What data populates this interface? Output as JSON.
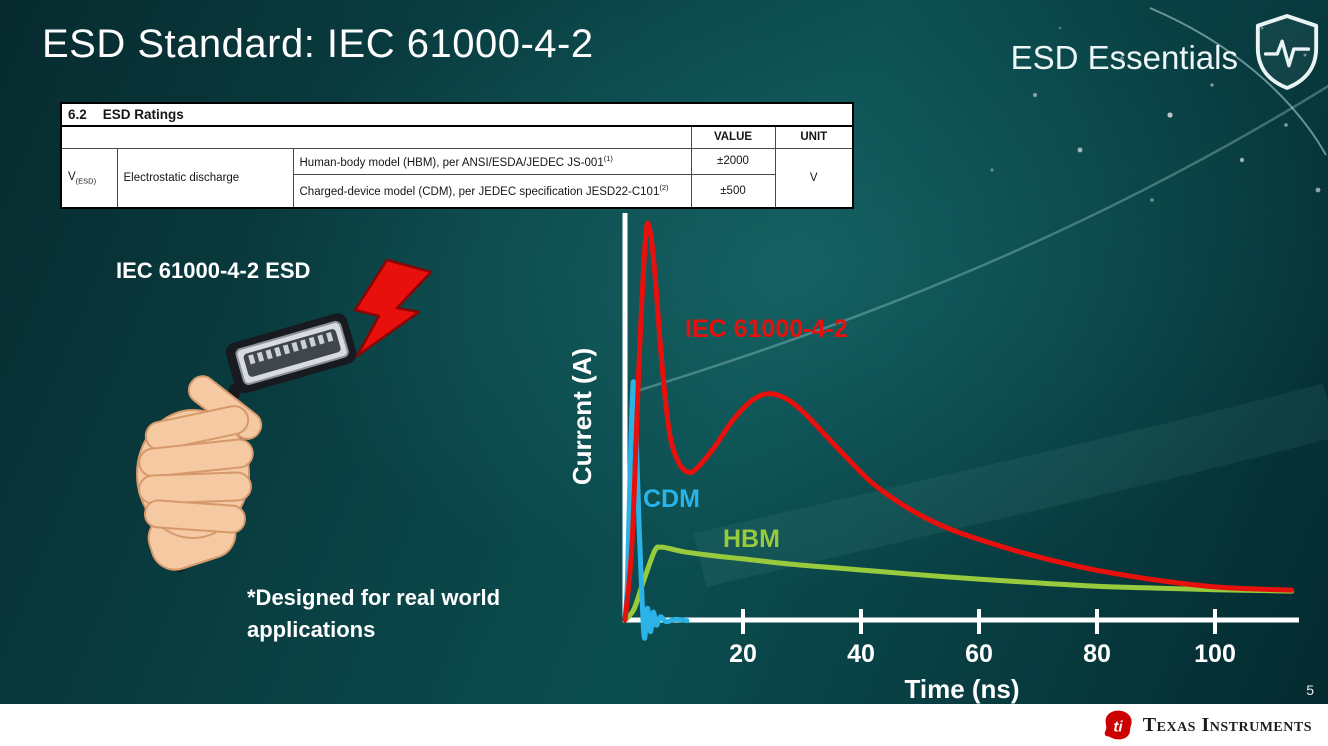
{
  "slide": {
    "title": "ESD Standard: IEC 61000-4-2",
    "brand": "ESD Essentials",
    "page_number": "5",
    "footer_brand": "Texas Instruments"
  },
  "ratings_table": {
    "section_number": "6.2",
    "section_title": "ESD Ratings",
    "headers": {
      "value": "VALUE",
      "unit": "UNIT"
    },
    "param_symbol_main": "V",
    "param_symbol_sub": "(ESD)",
    "param_name": "Electrostatic discharge",
    "rows": [
      {
        "desc": "Human-body model (HBM), per ANSI/ESDA/JEDEC JS-001",
        "sup": "(1)",
        "value": "±2000"
      },
      {
        "desc": "Charged-device model (CDM), per JEDEC specification JESD22-C101",
        "sup": "(2)",
        "value": "±500"
      }
    ],
    "unit": "V"
  },
  "left_panel": {
    "connector_label": "IEC 61000-4-2 ESD",
    "note_line1": "*Designed for real world",
    "note_line2": "applications"
  },
  "chart_data": {
    "type": "line",
    "title": "",
    "xlabel": "Time (ns)",
    "ylabel": "Current (A)",
    "x_ticks": [
      20,
      40,
      60,
      80,
      100
    ],
    "xlim": [
      0,
      113
    ],
    "ylim": [
      -2,
      31
    ],
    "y_axis_numeric_labels": false,
    "grid": false,
    "legend_position": "inline-labels",
    "series": [
      {
        "name": "IEC 61000-4-2",
        "color": "#e8100c",
        "points": [
          [
            0,
            0
          ],
          [
            1.2,
            6
          ],
          [
            2.4,
            20
          ],
          [
            3.5,
            29.5
          ],
          [
            4.2,
            30
          ],
          [
            5,
            27
          ],
          [
            6.2,
            20
          ],
          [
            7.5,
            14.5
          ],
          [
            9,
            12.2
          ],
          [
            10.5,
            11.4
          ],
          [
            12,
            11.6
          ],
          [
            15,
            13.2
          ],
          [
            18,
            15.2
          ],
          [
            21,
            16.7
          ],
          [
            24,
            17.4
          ],
          [
            27,
            17.1
          ],
          [
            30,
            16.1
          ],
          [
            34,
            14.2
          ],
          [
            38,
            12.3
          ],
          [
            42,
            10.5
          ],
          [
            48,
            8.6
          ],
          [
            54,
            7.2
          ],
          [
            60,
            6.2
          ],
          [
            68,
            5.1
          ],
          [
            76,
            4.2
          ],
          [
            84,
            3.5
          ],
          [
            92,
            2.95
          ],
          [
            100,
            2.55
          ],
          [
            106,
            2.4
          ],
          [
            113,
            2.3
          ]
        ]
      },
      {
        "name": "CDM",
        "color": "#2bb3e8",
        "points": [
          [
            0,
            0
          ],
          [
            0.4,
            3
          ],
          [
            0.9,
            12
          ],
          [
            1.4,
            18.3
          ],
          [
            1.9,
            14
          ],
          [
            2.4,
            7
          ],
          [
            2.9,
            1.5
          ],
          [
            3.3,
            -1.4
          ],
          [
            3.8,
            0.9
          ],
          [
            4.3,
            -0.9
          ],
          [
            4.8,
            0.6
          ],
          [
            5.3,
            -0.4
          ],
          [
            6,
            0.25
          ],
          [
            7,
            -0.12
          ],
          [
            8.5,
            0.05
          ],
          [
            10.5,
            -0.05
          ]
        ]
      },
      {
        "name": "HBM",
        "color": "#97ca3d",
        "points": [
          [
            0,
            0
          ],
          [
            1.5,
            0.8
          ],
          [
            3,
            2.8
          ],
          [
            5,
            5.3
          ],
          [
            6,
            5.6
          ],
          [
            7.5,
            5.5
          ],
          [
            10,
            5.25
          ],
          [
            14,
            5.0
          ],
          [
            20,
            4.7
          ],
          [
            28,
            4.3
          ],
          [
            36,
            4.0
          ],
          [
            44,
            3.7
          ],
          [
            52,
            3.4
          ],
          [
            60,
            3.15
          ],
          [
            70,
            2.85
          ],
          [
            80,
            2.6
          ],
          [
            90,
            2.45
          ],
          [
            100,
            2.33
          ],
          [
            106,
            2.28
          ],
          [
            113,
            2.22
          ]
        ]
      }
    ]
  },
  "colors": {
    "iec_red": "#e8100c",
    "cdm_blue": "#2bb3e8",
    "hbm_green": "#97ca3d",
    "axis_white": "#ffffff"
  }
}
